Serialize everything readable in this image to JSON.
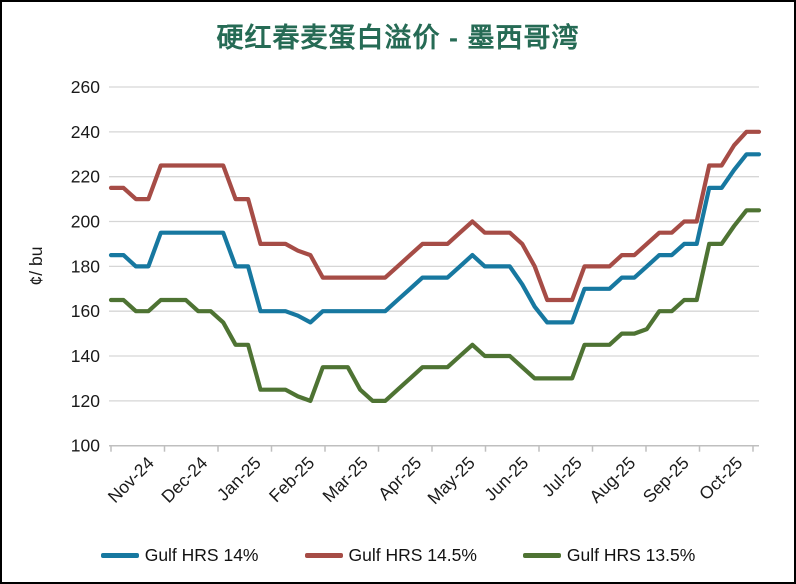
{
  "title": "硬红春麦蛋白溢价 - 墨西哥湾",
  "colors": {
    "title": "#266B55",
    "series_blue": "#1778A0",
    "series_red": "#A64C46",
    "series_green": "#4E7333",
    "gridline": "#D6D6D6",
    "axis": "#BFBFBF",
    "text": "#1A1A1A"
  },
  "chart_data": {
    "type": "line",
    "title": "硬红春麦蛋白溢价 - 墨西哥湾",
    "xlabel": "",
    "ylabel": "¢/ bu",
    "ylim": [
      100,
      260
    ],
    "yticks": [
      100,
      120,
      140,
      160,
      180,
      200,
      220,
      240,
      260
    ],
    "grid": "horizontal",
    "legend_position": "bottom",
    "x_unit": "weekly",
    "categories": [
      "Nov-24",
      "Dec-24",
      "Jan-25",
      "Feb-25",
      "Mar-25",
      "Apr-25",
      "May-25",
      "Jun-25",
      "Jul-25",
      "Aug-25",
      "Sep-25",
      "Oct-25"
    ],
    "series": [
      {
        "name": "Gulf HRS 14%",
        "color": "#1778A0",
        "values": [
          185,
          185,
          180,
          180,
          195,
          195,
          195,
          195,
          195,
          195,
          180,
          180,
          160,
          160,
          160,
          158,
          155,
          160,
          160,
          160,
          160,
          160,
          160,
          165,
          170,
          175,
          175,
          175,
          180,
          185,
          180,
          180,
          180,
          172,
          162,
          155,
          155,
          155,
          170,
          170,
          170,
          175,
          175,
          180,
          185,
          185,
          190,
          190,
          215,
          215,
          223,
          230,
          230
        ]
      },
      {
        "name": "Gulf HRS 14.5%",
        "color": "#A64C46",
        "values": [
          215,
          215,
          210,
          210,
          225,
          225,
          225,
          225,
          225,
          225,
          210,
          210,
          190,
          190,
          190,
          187,
          185,
          175,
          175,
          175,
          175,
          175,
          175,
          180,
          185,
          190,
          190,
          190,
          195,
          200,
          195,
          195,
          195,
          190,
          180,
          165,
          165,
          165,
          180,
          180,
          180,
          185,
          185,
          190,
          195,
          195,
          200,
          200,
          225,
          225,
          234,
          240,
          240
        ]
      },
      {
        "name": "Gulf HRS 13.5%",
        "color": "#4E7333",
        "values": [
          165,
          165,
          160,
          160,
          165,
          165,
          165,
          160,
          160,
          155,
          145,
          145,
          125,
          125,
          125,
          122,
          120,
          135,
          135,
          135,
          125,
          120,
          120,
          125,
          130,
          135,
          135,
          135,
          140,
          145,
          140,
          140,
          140,
          135,
          130,
          130,
          130,
          130,
          145,
          145,
          145,
          150,
          150,
          152,
          160,
          160,
          165,
          165,
          190,
          190,
          198,
          205,
          205
        ]
      }
    ]
  },
  "legend": {
    "items": [
      "Gulf HRS 14%",
      "Gulf HRS 14.5%",
      "Gulf HRS 13.5%"
    ]
  }
}
